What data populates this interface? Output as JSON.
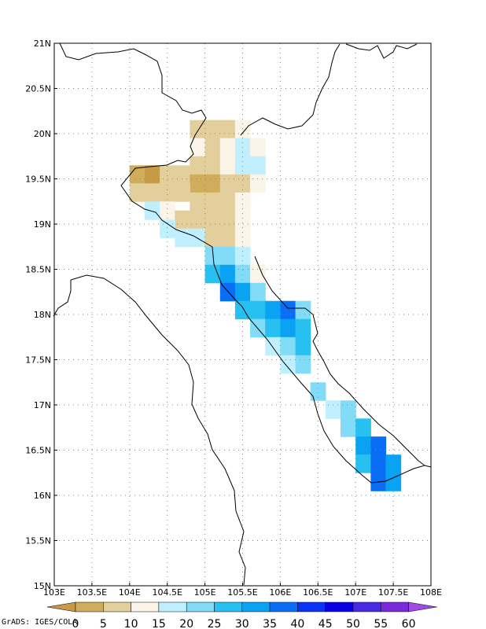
{
  "credit": "GrADS: IGES/COLA",
  "map": {
    "lon_range": [
      103,
      108
    ],
    "lat_range": [
      15,
      21
    ],
    "lon_ticks": [
      {
        "value": 103,
        "label": "103E"
      },
      {
        "value": 103.5,
        "label": "103.5E"
      },
      {
        "value": 104,
        "label": "104E"
      },
      {
        "value": 104.5,
        "label": "104.5E"
      },
      {
        "value": 105,
        "label": "105E"
      },
      {
        "value": 105.5,
        "label": "105.5E"
      },
      {
        "value": 106,
        "label": "106E"
      },
      {
        "value": 106.5,
        "label": "106.5E"
      },
      {
        "value": 107,
        "label": "107E"
      },
      {
        "value": 107.5,
        "label": "107.5E"
      },
      {
        "value": 108,
        "label": "108E"
      }
    ],
    "lat_ticks": [
      {
        "value": 15,
        "label": "15N"
      },
      {
        "value": 15.5,
        "label": "15.5N"
      },
      {
        "value": 16,
        "label": "16N"
      },
      {
        "value": 16.5,
        "label": "16.5N"
      },
      {
        "value": 17,
        "label": "17N"
      },
      {
        "value": 17.5,
        "label": "17.5N"
      },
      {
        "value": 18,
        "label": "18N"
      },
      {
        "value": 18.5,
        "label": "18.5N"
      },
      {
        "value": 19,
        "label": "19N"
      },
      {
        "value": 19.5,
        "label": "19.5N"
      },
      {
        "value": 20,
        "label": "20N"
      },
      {
        "value": 20.5,
        "label": "20.5N"
      },
      {
        "value": 21,
        "label": "21N"
      }
    ],
    "grid": "dotted",
    "colorbar": {
      "labels": [
        "0",
        "5",
        "10",
        "15",
        "20",
        "25",
        "30",
        "35",
        "40",
        "45",
        "50",
        "55",
        "60"
      ],
      "colors": [
        "#c79a48",
        "#cfad5c",
        "#e2cf9c",
        "#faf5e8",
        "#c0f0ff",
        "#82dcf8",
        "#28c0f0",
        "#0aa2f2",
        "#0a6ef5",
        "#0a32f5",
        "#0a00e6",
        "#4a2ae0",
        "#7a2ad8",
        "#a24ae6"
      ]
    },
    "shaded_cells": [
      {
        "lon": 104.9,
        "lat": 20.05,
        "color": "#e2cf9c"
      },
      {
        "lon": 105.1,
        "lat": 20.05,
        "color": "#e2cf9c"
      },
      {
        "lon": 105.3,
        "lat": 20.05,
        "color": "#e2cf9c"
      },
      {
        "lon": 105.5,
        "lat": 20.05,
        "color": "#faf5e8"
      },
      {
        "lon": 104.9,
        "lat": 19.85,
        "color": "#faf5e8"
      },
      {
        "lon": 105.1,
        "lat": 19.85,
        "color": "#e2cf9c"
      },
      {
        "lon": 105.3,
        "lat": 19.85,
        "color": "#faf5e8"
      },
      {
        "lon": 105.5,
        "lat": 19.85,
        "color": "#c0f0ff"
      },
      {
        "lon": 105.7,
        "lat": 19.85,
        "color": "#faf5e8"
      },
      {
        "lon": 104.9,
        "lat": 19.65,
        "color": "#e2cf9c"
      },
      {
        "lon": 105.1,
        "lat": 19.65,
        "color": "#e2cf9c"
      },
      {
        "lon": 105.3,
        "lat": 19.65,
        "color": "#faf5e8"
      },
      {
        "lon": 105.5,
        "lat": 19.65,
        "color": "#c0f0ff"
      },
      {
        "lon": 105.7,
        "lat": 19.65,
        "color": "#c0f0ff"
      },
      {
        "lon": 104.1,
        "lat": 19.55,
        "color": "#cfad5c"
      },
      {
        "lon": 104.3,
        "lat": 19.55,
        "color": "#c79a48"
      },
      {
        "lon": 104.5,
        "lat": 19.55,
        "color": "#e2cf9c"
      },
      {
        "lon": 104.7,
        "lat": 19.55,
        "color": "#e2cf9c"
      },
      {
        "lon": 104.9,
        "lat": 19.45,
        "color": "#cfad5c"
      },
      {
        "lon": 105.1,
        "lat": 19.45,
        "color": "#cfad5c"
      },
      {
        "lon": 105.3,
        "lat": 19.45,
        "color": "#e2cf9c"
      },
      {
        "lon": 105.5,
        "lat": 19.45,
        "color": "#e2cf9c"
      },
      {
        "lon": 105.7,
        "lat": 19.45,
        "color": "#faf5e8"
      },
      {
        "lon": 104.1,
        "lat": 19.35,
        "color": "#e2cf9c"
      },
      {
        "lon": 104.3,
        "lat": 19.35,
        "color": "#e2cf9c"
      },
      {
        "lon": 104.5,
        "lat": 19.35,
        "color": "#e2cf9c"
      },
      {
        "lon": 104.7,
        "lat": 19.35,
        "color": "#e2cf9c"
      },
      {
        "lon": 104.9,
        "lat": 19.25,
        "color": "#e2cf9c"
      },
      {
        "lon": 105.1,
        "lat": 19.25,
        "color": "#e2cf9c"
      },
      {
        "lon": 105.3,
        "lat": 19.25,
        "color": "#e2cf9c"
      },
      {
        "lon": 105.5,
        "lat": 19.25,
        "color": "#faf5e8"
      },
      {
        "lon": 104.3,
        "lat": 19.15,
        "color": "#c0f0ff"
      },
      {
        "lon": 104.5,
        "lat": 19.15,
        "color": "#faf5e8"
      },
      {
        "lon": 104.7,
        "lat": 19.05,
        "color": "#e2cf9c"
      },
      {
        "lon": 104.9,
        "lat": 19.05,
        "color": "#e2cf9c"
      },
      {
        "lon": 105.1,
        "lat": 19.05,
        "color": "#e2cf9c"
      },
      {
        "lon": 105.3,
        "lat": 19.05,
        "color": "#e2cf9c"
      },
      {
        "lon": 105.5,
        "lat": 19.05,
        "color": "#faf5e8"
      },
      {
        "lon": 104.5,
        "lat": 18.95,
        "color": "#c0f0ff"
      },
      {
        "lon": 104.7,
        "lat": 18.85,
        "color": "#c0f0ff"
      },
      {
        "lon": 104.9,
        "lat": 18.85,
        "color": "#c0f0ff"
      },
      {
        "lon": 105.1,
        "lat": 18.85,
        "color": "#e2cf9c"
      },
      {
        "lon": 105.3,
        "lat": 18.85,
        "color": "#e2cf9c"
      },
      {
        "lon": 105.5,
        "lat": 18.85,
        "color": "#faf5e8"
      },
      {
        "lon": 105.1,
        "lat": 18.65,
        "color": "#82dcf8"
      },
      {
        "lon": 105.3,
        "lat": 18.65,
        "color": "#82dcf8"
      },
      {
        "lon": 105.5,
        "lat": 18.65,
        "color": "#c0f0ff"
      },
      {
        "lon": 105.1,
        "lat": 18.45,
        "color": "#28c0f0"
      },
      {
        "lon": 105.3,
        "lat": 18.45,
        "color": "#0aa2f2"
      },
      {
        "lon": 105.5,
        "lat": 18.45,
        "color": "#82dcf8"
      },
      {
        "lon": 105.7,
        "lat": 18.45,
        "color": "#faf5e8"
      },
      {
        "lon": 105.3,
        "lat": 18.25,
        "color": "#0a6ef5"
      },
      {
        "lon": 105.5,
        "lat": 18.25,
        "color": "#0aa2f2"
      },
      {
        "lon": 105.7,
        "lat": 18.25,
        "color": "#82dcf8"
      },
      {
        "lon": 105.5,
        "lat": 18.05,
        "color": "#28c0f0"
      },
      {
        "lon": 105.7,
        "lat": 18.05,
        "color": "#28c0f0"
      },
      {
        "lon": 105.9,
        "lat": 18.05,
        "color": "#0aa2f2"
      },
      {
        "lon": 106.1,
        "lat": 18.05,
        "color": "#0a6ef5"
      },
      {
        "lon": 106.3,
        "lat": 18.05,
        "color": "#82dcf8"
      },
      {
        "lon": 105.7,
        "lat": 17.85,
        "color": "#82dcf8"
      },
      {
        "lon": 105.9,
        "lat": 17.85,
        "color": "#28c0f0"
      },
      {
        "lon": 106.1,
        "lat": 17.85,
        "color": "#0aa2f2"
      },
      {
        "lon": 106.3,
        "lat": 17.85,
        "color": "#28c0f0"
      },
      {
        "lon": 105.9,
        "lat": 17.65,
        "color": "#c0f0ff"
      },
      {
        "lon": 106.1,
        "lat": 17.65,
        "color": "#82dcf8"
      },
      {
        "lon": 106.3,
        "lat": 17.65,
        "color": "#28c0f0"
      },
      {
        "lon": 106.1,
        "lat": 17.45,
        "color": "#c0f0ff"
      },
      {
        "lon": 106.3,
        "lat": 17.45,
        "color": "#82dcf8"
      },
      {
        "lon": 106.5,
        "lat": 17.15,
        "color": "#82dcf8"
      },
      {
        "lon": 106.7,
        "lat": 16.95,
        "color": "#c0f0ff"
      },
      {
        "lon": 106.9,
        "lat": 16.95,
        "color": "#82dcf8"
      },
      {
        "lon": 106.9,
        "lat": 16.75,
        "color": "#82dcf8"
      },
      {
        "lon": 107.1,
        "lat": 16.75,
        "color": "#28c0f0"
      },
      {
        "lon": 107.1,
        "lat": 16.55,
        "color": "#0aa2f2"
      },
      {
        "lon": 107.3,
        "lat": 16.55,
        "color": "#0a6ef5"
      },
      {
        "lon": 107.1,
        "lat": 16.35,
        "color": "#28c0f0"
      },
      {
        "lon": 107.3,
        "lat": 16.35,
        "color": "#0a6ef5"
      },
      {
        "lon": 107.5,
        "lat": 16.35,
        "color": "#0aa2f2"
      },
      {
        "lon": 107.3,
        "lat": 16.15,
        "color": "#0a6ef5"
      },
      {
        "lon": 107.5,
        "lat": 16.15,
        "color": "#0aa2f2"
      }
    ]
  }
}
